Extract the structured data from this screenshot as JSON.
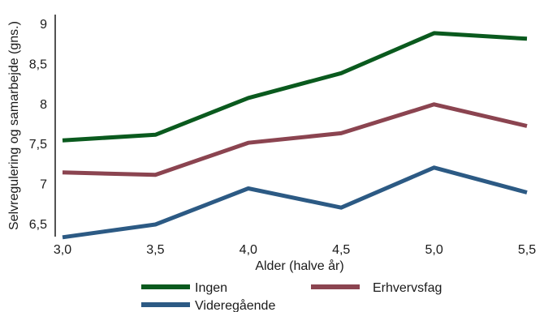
{
  "chart_data": {
    "type": "line",
    "title": "",
    "xlabel": "Alder (halve år)",
    "ylabel": "Selvregulering og samarbejde (gns.)",
    "x": [
      3.0,
      3.5,
      4.0,
      4.5,
      5.0,
      5.5
    ],
    "x_tick_labels": [
      "3,0",
      "3,5",
      "4,0",
      "4,5",
      "5,0",
      "5,5"
    ],
    "y_ticks": [
      6.5,
      7,
      7.5,
      8,
      8.5,
      9
    ],
    "y_tick_labels": [
      "6,5",
      "7",
      "7,5",
      "8",
      "8,5",
      "9"
    ],
    "xlim": [
      3.0,
      5.5
    ],
    "ylim": [
      6.3,
      9.1
    ],
    "grid": false,
    "legend_position": "bottom",
    "series": [
      {
        "name": "Ingen",
        "color": "#0a5a1e",
        "values": [
          7.54,
          7.61,
          8.07,
          8.38,
          8.88,
          8.81
        ]
      },
      {
        "name": "Erhvervsfag",
        "color": "#8b4450",
        "values": [
          7.14,
          7.11,
          7.51,
          7.63,
          7.99,
          7.72
        ]
      },
      {
        "name": "Videregående",
        "color": "#2c5a84",
        "values": [
          6.33,
          6.49,
          6.94,
          6.7,
          7.2,
          6.89
        ]
      }
    ]
  }
}
